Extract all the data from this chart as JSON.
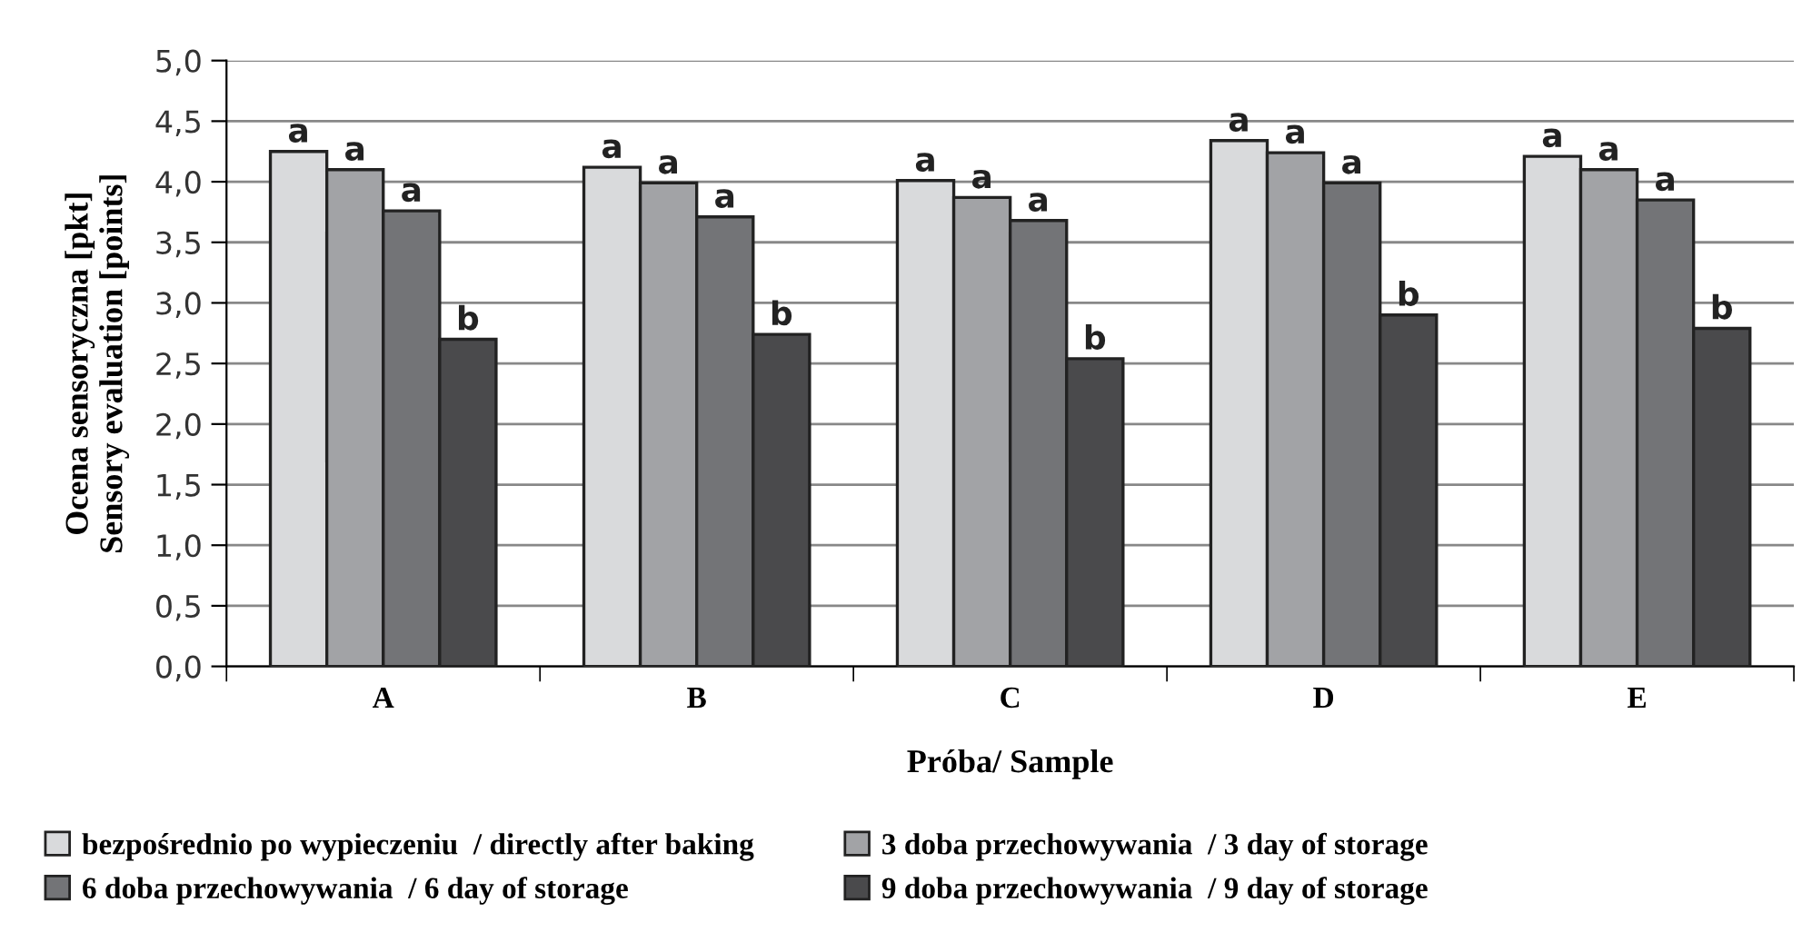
{
  "chart_data": {
    "type": "bar",
    "xlabel": "Próba/ Sample",
    "ylabel": "Ocena sensoryczna [pkt]\nSensory evaluation [points]",
    "categories": [
      "A",
      "B",
      "C",
      "D",
      "E"
    ],
    "series": [
      {
        "name": "bezpośrednio po wypieczeniu  / directly after baking",
        "color": "#d9dadc",
        "values": [
          4.25,
          4.12,
          4.01,
          4.34,
          4.21
        ],
        "value_labels": [
          "a",
          "a",
          "a",
          "a",
          "a"
        ]
      },
      {
        "name": "3 doba przechowywania  / 3 day of storage",
        "color": "#a2a3a6",
        "values": [
          4.1,
          3.99,
          3.87,
          4.24,
          4.1
        ],
        "value_labels": [
          "a",
          "a",
          "a",
          "a",
          "a"
        ]
      },
      {
        "name": "6 doba przechowywania  / 6 day of storage",
        "color": "#737477",
        "values": [
          3.76,
          3.71,
          3.68,
          3.99,
          3.85
        ],
        "value_labels": [
          "a",
          "a",
          "a",
          "a",
          "a"
        ]
      },
      {
        "name": "9 doba przechowywania  / 9 day of storage",
        "color": "#4a4a4c",
        "values": [
          2.7,
          2.74,
          2.54,
          2.9,
          2.79
        ],
        "value_labels": [
          "b",
          "b",
          "b",
          "b",
          "b"
        ]
      }
    ],
    "ylim": [
      0,
      5
    ],
    "yticks": [
      {
        "value": 0,
        "label": "0,0"
      },
      {
        "value": 0.5,
        "label": "0,5"
      },
      {
        "value": 1,
        "label": "1,0"
      },
      {
        "value": 1.5,
        "label": "1,5"
      },
      {
        "value": 2,
        "label": "2,0"
      },
      {
        "value": 2.5,
        "label": "2,5"
      },
      {
        "value": 3,
        "label": "3,0"
      },
      {
        "value": 3.5,
        "label": "3,5"
      },
      {
        "value": 4,
        "label": "4,0"
      },
      {
        "value": 4.5,
        "label": "4,5"
      },
      {
        "value": 5,
        "label": "5,0"
      }
    ],
    "grid": "y",
    "legend": "bottom"
  }
}
